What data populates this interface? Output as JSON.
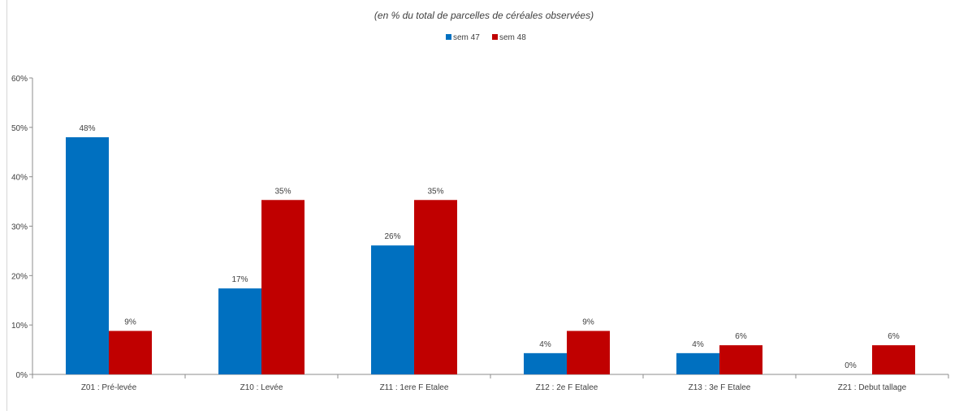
{
  "chart_data": {
    "type": "bar",
    "title": "",
    "subtitle": "(en %  du total de parcelles de céréales observées)",
    "xlabel": "",
    "ylabel": "",
    "categories": [
      "Z01 : Pré-levée",
      "Z10 : Levée",
      "Z11 : 1ere F Etalee",
      "Z12 : 2e F Etalee",
      "Z13 : 3e F Etalee",
      "Z21 : Debut tallage"
    ],
    "series": [
      {
        "name": "sem 47",
        "color": "#0070c0",
        "values": [
          48,
          17.4,
          26.1,
          4.3,
          4.3,
          0
        ],
        "labels": [
          "48%",
          "17%",
          "26%",
          "4%",
          "4%",
          "0%"
        ]
      },
      {
        "name": "sem 48",
        "color": "#c00000",
        "values": [
          8.8,
          35.3,
          35.3,
          8.8,
          5.9,
          5.9
        ],
        "labels": [
          "9%",
          "35%",
          "35%",
          "9%",
          "6%",
          "6%"
        ]
      }
    ],
    "ylim": [
      0,
      60
    ],
    "yticks": [
      "0%",
      "10%",
      "20%",
      "30%",
      "40%",
      "50%",
      "60%"
    ],
    "grid": false,
    "legend_position": "top-center"
  }
}
